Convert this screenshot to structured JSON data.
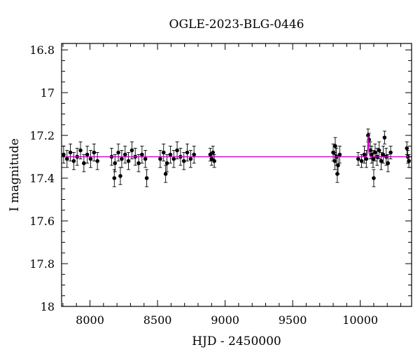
{
  "chart_data": {
    "type": "scatter",
    "title": "OGLE-2023-BLG-0446",
    "xlabel": "HJD - 2450000",
    "ylabel": "I magnitude",
    "xlim": [
      7790,
      10380
    ],
    "ylim": [
      18.0,
      16.77
    ],
    "y_inverted": true,
    "grid": false,
    "x_ticks": [
      8000,
      8500,
      9000,
      9500,
      10000
    ],
    "x_tick_labels": [
      "8000",
      "8500",
      "9000",
      "9500",
      "10000"
    ],
    "y_ticks": [
      16.8,
      17.0,
      17.2,
      17.4,
      17.6,
      17.8,
      18.0
    ],
    "y_tick_labels": [
      "16.8",
      "17",
      "17.2",
      "17.4",
      "17.6",
      "17.8",
      "18"
    ],
    "series": [
      {
        "kind": "observations",
        "points": [
          {
            "x": 7805,
            "y": 17.29,
            "err": 0.04
          },
          {
            "x": 7830,
            "y": 17.31,
            "err": 0.04
          },
          {
            "x": 7855,
            "y": 17.28,
            "err": 0.04
          },
          {
            "x": 7880,
            "y": 17.32,
            "err": 0.04
          },
          {
            "x": 7905,
            "y": 17.3,
            "err": 0.04
          },
          {
            "x": 7930,
            "y": 17.27,
            "err": 0.04
          },
          {
            "x": 7955,
            "y": 17.33,
            "err": 0.04
          },
          {
            "x": 7980,
            "y": 17.29,
            "err": 0.04
          },
          {
            "x": 8005,
            "y": 17.31,
            "err": 0.04
          },
          {
            "x": 8030,
            "y": 17.28,
            "err": 0.04
          },
          {
            "x": 8055,
            "y": 17.32,
            "err": 0.04
          },
          {
            "x": 8160,
            "y": 17.3,
            "err": 0.04
          },
          {
            "x": 8185,
            "y": 17.33,
            "err": 0.04
          },
          {
            "x": 8210,
            "y": 17.28,
            "err": 0.04
          },
          {
            "x": 8235,
            "y": 17.31,
            "err": 0.04
          },
          {
            "x": 8260,
            "y": 17.29,
            "err": 0.04
          },
          {
            "x": 8285,
            "y": 17.32,
            "err": 0.04
          },
          {
            "x": 8310,
            "y": 17.27,
            "err": 0.04
          },
          {
            "x": 8335,
            "y": 17.3,
            "err": 0.04
          },
          {
            "x": 8360,
            "y": 17.33,
            "err": 0.04
          },
          {
            "x": 8385,
            "y": 17.29,
            "err": 0.04
          },
          {
            "x": 8410,
            "y": 17.31,
            "err": 0.04
          },
          {
            "x": 8180,
            "y": 17.4,
            "err": 0.04
          },
          {
            "x": 8225,
            "y": 17.39,
            "err": 0.04
          },
          {
            "x": 8420,
            "y": 17.4,
            "err": 0.04
          },
          {
            "x": 8520,
            "y": 17.31,
            "err": 0.04
          },
          {
            "x": 8545,
            "y": 17.28,
            "err": 0.04
          },
          {
            "x": 8570,
            "y": 17.33,
            "err": 0.04
          },
          {
            "x": 8595,
            "y": 17.29,
            "err": 0.04
          },
          {
            "x": 8620,
            "y": 17.31,
            "err": 0.04
          },
          {
            "x": 8645,
            "y": 17.27,
            "err": 0.04
          },
          {
            "x": 8670,
            "y": 17.3,
            "err": 0.04
          },
          {
            "x": 8695,
            "y": 17.32,
            "err": 0.04
          },
          {
            "x": 8720,
            "y": 17.28,
            "err": 0.04
          },
          {
            "x": 8745,
            "y": 17.31,
            "err": 0.04
          },
          {
            "x": 8770,
            "y": 17.29,
            "err": 0.04
          },
          {
            "x": 8560,
            "y": 17.38,
            "err": 0.04
          },
          {
            "x": 8890,
            "y": 17.29,
            "err": 0.03
          },
          {
            "x": 8900,
            "y": 17.31,
            "err": 0.03
          },
          {
            "x": 8910,
            "y": 17.28,
            "err": 0.03
          },
          {
            "x": 8920,
            "y": 17.32,
            "err": 0.03
          },
          {
            "x": 9800,
            "y": 17.28,
            "err": 0.04
          },
          {
            "x": 9812,
            "y": 17.32,
            "err": 0.04
          },
          {
            "x": 9824,
            "y": 17.3,
            "err": 0.04
          },
          {
            "x": 9836,
            "y": 17.34,
            "err": 0.04
          },
          {
            "x": 9848,
            "y": 17.29,
            "err": 0.04
          },
          {
            "x": 9830,
            "y": 17.38,
            "err": 0.04
          },
          {
            "x": 9815,
            "y": 17.25,
            "err": 0.04
          },
          {
            "x": 9985,
            "y": 17.31,
            "err": 0.03
          },
          {
            "x": 10010,
            "y": 17.32,
            "err": 0.03
          },
          {
            "x": 10030,
            "y": 17.29,
            "err": 0.04
          },
          {
            "x": 10045,
            "y": 17.31,
            "err": 0.04
          },
          {
            "x": 10058,
            "y": 17.2,
            "err": 0.03
          },
          {
            "x": 10065,
            "y": 17.22,
            "err": 0.03
          },
          {
            "x": 10075,
            "y": 17.27,
            "err": 0.04
          },
          {
            "x": 10085,
            "y": 17.29,
            "err": 0.04
          },
          {
            "x": 10095,
            "y": 17.31,
            "err": 0.04
          },
          {
            "x": 10100,
            "y": 17.4,
            "err": 0.04
          },
          {
            "x": 10110,
            "y": 17.28,
            "err": 0.04
          },
          {
            "x": 10125,
            "y": 17.3,
            "err": 0.04
          },
          {
            "x": 10140,
            "y": 17.27,
            "err": 0.04
          },
          {
            "x": 10155,
            "y": 17.32,
            "err": 0.04
          },
          {
            "x": 10170,
            "y": 17.29,
            "err": 0.04
          },
          {
            "x": 10180,
            "y": 17.21,
            "err": 0.03
          },
          {
            "x": 10192,
            "y": 17.3,
            "err": 0.04
          },
          {
            "x": 10205,
            "y": 17.33,
            "err": 0.04
          },
          {
            "x": 10225,
            "y": 17.28,
            "err": 0.03
          },
          {
            "x": 10345,
            "y": 17.26,
            "err": 0.03
          },
          {
            "x": 10352,
            "y": 17.3,
            "err": 0.03
          },
          {
            "x": 10360,
            "y": 17.32,
            "err": 0.03
          }
        ]
      },
      {
        "kind": "model",
        "color": "#cc00cc",
        "x": [
          7790,
          10040,
          10050,
          10055,
          10058,
          10061,
          10065,
          10070,
          10080,
          10380
        ],
        "y": [
          17.3,
          17.3,
          17.295,
          17.26,
          17.2,
          17.24,
          17.28,
          17.295,
          17.3,
          17.3
        ]
      }
    ]
  }
}
